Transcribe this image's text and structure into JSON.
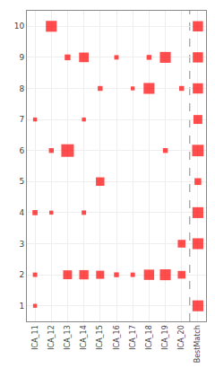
{
  "chart_data": {
    "type": "scatter",
    "x_categories": [
      "ICA_11",
      "ICA_12",
      "ICA_13",
      "ICA_14",
      "ICA_15",
      "ICA_16",
      "ICA_17",
      "ICA_18",
      "ICA_19",
      "ICA_20",
      "BestMatch"
    ],
    "y_categories": [
      "1",
      "2",
      "3",
      "4",
      "5",
      "6",
      "7",
      "8",
      "9",
      "10"
    ],
    "x": [
      "ICA_12",
      "BestMatch",
      "ICA_13",
      "ICA_14",
      "ICA_16",
      "ICA_18",
      "ICA_19",
      "BestMatch",
      "ICA_15",
      "ICA_17",
      "ICA_18",
      "ICA_20",
      "BestMatch",
      "ICA_11",
      "ICA_14",
      "BestMatch",
      "ICA_12",
      "ICA_13",
      "ICA_19",
      "BestMatch",
      "ICA_15",
      "BestMatch",
      "ICA_11",
      "ICA_12",
      "ICA_14",
      "BestMatch",
      "ICA_20",
      "BestMatch",
      "ICA_11",
      "ICA_13",
      "ICA_14",
      "ICA_15",
      "ICA_16",
      "ICA_17",
      "ICA_18",
      "ICA_19",
      "ICA_20",
      "ICA_11",
      "BestMatch"
    ],
    "y": [
      "10",
      "10",
      "9",
      "9",
      "9",
      "9",
      "9",
      "9",
      "8",
      "8",
      "8",
      "8",
      "8",
      "7",
      "7",
      "7",
      "6",
      "6",
      "6",
      "6",
      "5",
      "5",
      "4",
      "4",
      "4",
      "4",
      "3",
      "3",
      "2",
      "2",
      "2",
      "2",
      "2",
      "2",
      "2",
      "2",
      "2",
      "1",
      "1"
    ],
    "size": [
      90,
      80,
      25,
      70,
      15,
      18,
      90,
      80,
      18,
      12,
      90,
      18,
      80,
      12,
      12,
      60,
      18,
      120,
      18,
      100,
      55,
      35,
      20,
      12,
      15,
      90,
      45,
      90,
      15,
      60,
      65,
      50,
      18,
      15,
      80,
      90,
      45,
      12,
      90
    ],
    "color": "#ff0000",
    "marker": "square",
    "grid": true
  }
}
